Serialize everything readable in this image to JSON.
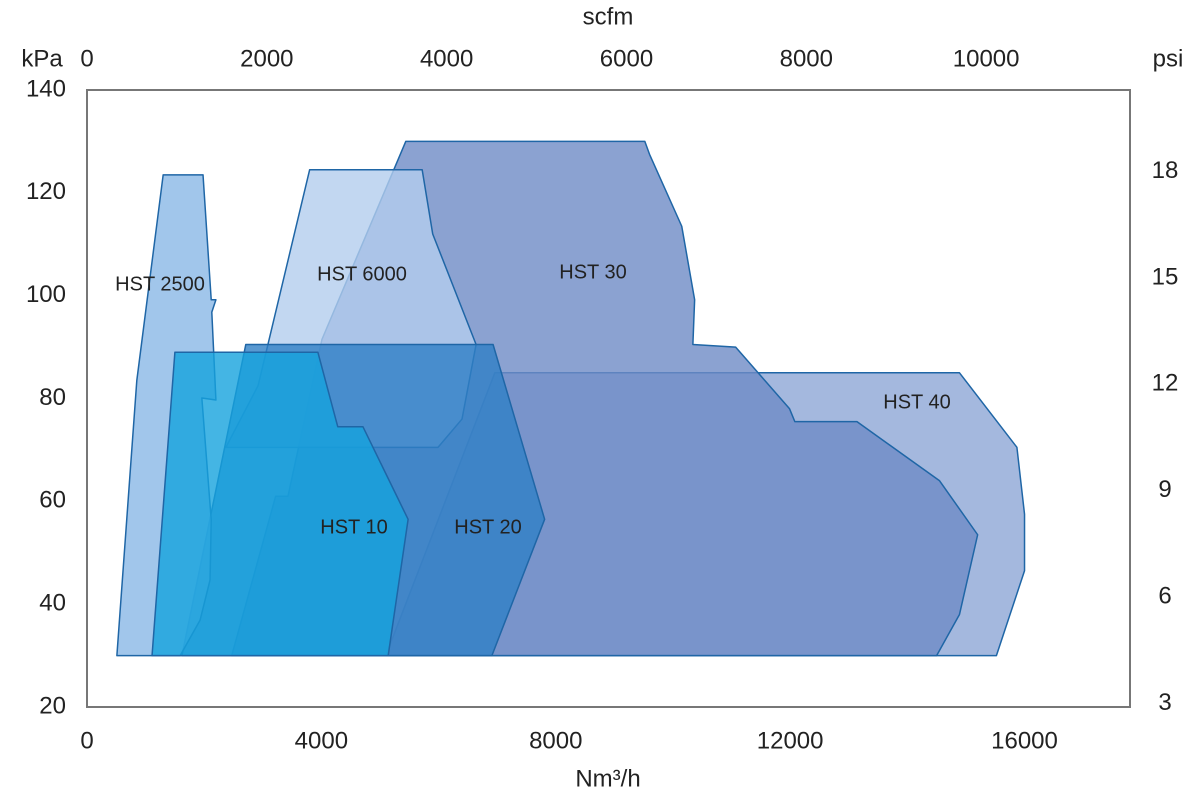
{
  "chart_data": {
    "type": "polygon",
    "x_label": "Nm³/h",
    "x2_label": "scfm",
    "y_label": "kPa",
    "y2_label": "psi",
    "xlim": [
      0,
      17800
    ],
    "xticks": [
      0,
      4000,
      8000,
      12000,
      16000
    ],
    "x2lim": [
      0,
      11600
    ],
    "x2ticks": [
      0,
      2000,
      4000,
      6000,
      8000,
      10000
    ],
    "ylim": [
      20,
      140
    ],
    "yticks": [
      20,
      40,
      60,
      80,
      100,
      120,
      140
    ],
    "y2lim": [
      2.9,
      20.3
    ],
    "y2ticks": [
      3,
      6,
      9,
      12,
      15,
      18
    ],
    "stroke": "#1f66a6",
    "fill_opacity": 0.8,
    "series": [
      {
        "name": "HST 40",
        "color": "#8da6d6",
        "x": [
          5100,
          6960,
          14890,
          15870,
          16000,
          16000,
          15520
        ],
        "values": [
          30,
          85,
          85,
          70.5,
          57.5,
          46.5,
          30
        ]
      },
      {
        "name": "HST 30",
        "color": "#6e8bc6",
        "x": [
          2470,
          3220,
          3430,
          4010,
          5440,
          9520,
          9600,
          10150,
          10370,
          10340,
          11070,
          11990,
          12080,
          13140,
          14550,
          15200,
          14890,
          14500
        ],
        "values": [
          30,
          61,
          61,
          91.5,
          130,
          130,
          127.5,
          113.5,
          99.2,
          90.5,
          90,
          78,
          75.5,
          75.5,
          64,
          53.5,
          38,
          30
        ]
      },
      {
        "name": "HST 6000",
        "color": "#b3cdee",
        "x": [
          2370,
          2920,
          3800,
          5720,
          5900,
          6640,
          6400,
          5990
        ],
        "values": [
          70.5,
          82.5,
          124.5,
          124.5,
          112,
          90.5,
          76,
          70.5
        ]
      },
      {
        "name": "HST 20",
        "color": "#2f7fc6",
        "x": [
          1620,
          2710,
          6930,
          7810,
          6910
        ],
        "values": [
          30,
          90.5,
          90.5,
          56.5,
          30
        ]
      },
      {
        "name": "HST 2500",
        "color": "#8ab8e6",
        "x": [
          510,
          850,
          1300,
          1980,
          2120,
          2200,
          2130,
          2200,
          1960,
          2120,
          2100,
          1930,
          1590
        ],
        "values": [
          30,
          83.5,
          123.5,
          123.5,
          99.2,
          99.2,
          96.8,
          79.7,
          80.1,
          56.4,
          44.7,
          36.9,
          30
        ]
      },
      {
        "name": "HST 10",
        "color": "#15a2dd",
        "x": [
          1110,
          1500,
          3940,
          4280,
          4710,
          5480,
          5140
        ],
        "values": [
          30,
          89,
          89,
          74.5,
          74.5,
          56.5,
          30
        ]
      }
    ]
  }
}
